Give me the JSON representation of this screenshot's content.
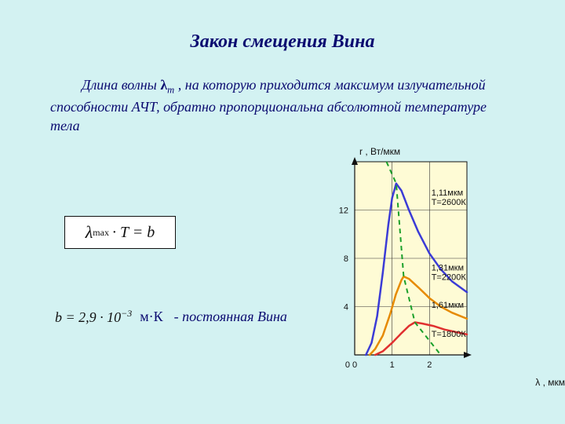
{
  "title": "Закон смещения Вина",
  "paragraph": {
    "pre": "Длина волны ",
    "lambda": "λ",
    "lambda_sub": "m",
    "post": " , на которую приходится максимум излучательной способности АЧТ, обратно пропорциональна абсолютной температуре тела"
  },
  "formula": {
    "lambda": "λ",
    "sub": "max",
    "rest": "· T = b"
  },
  "constant": {
    "expr_pre": "b = 2,9 · 10",
    "exp": "−3",
    "unit": "м·К",
    "desc": "- постоянная Вина"
  },
  "chart": {
    "y_label": "r ,  Вт/мкм",
    "x_label": "λ ,  мкм",
    "plot_bg": "#fefbd5",
    "page_bg": "#d3f2f2",
    "axis_color": "#111111",
    "grid_color": "#333333",
    "x_ticks": [
      0,
      1,
      2
    ],
    "y_ticks": [
      4,
      8,
      12
    ],
    "x_min": 0,
    "x_max": 3,
    "y_min": 0,
    "y_max": 16,
    "curves": [
      {
        "color": "#3b3bd6",
        "width": 2.5,
        "points": [
          [
            0.3,
            0.0
          ],
          [
            0.45,
            1.0
          ],
          [
            0.6,
            3.2
          ],
          [
            0.75,
            6.8
          ],
          [
            0.9,
            10.8
          ],
          [
            1.0,
            13.0
          ],
          [
            1.11,
            14.2
          ],
          [
            1.25,
            13.6
          ],
          [
            1.45,
            12.0
          ],
          [
            1.7,
            10.2
          ],
          [
            2.0,
            8.4
          ],
          [
            2.3,
            7.1
          ],
          [
            2.6,
            6.1
          ],
          [
            3.0,
            5.2
          ]
        ],
        "label_lines": [
          "1,11мкм",
          "T=2600К"
        ],
        "label_at": [
          2.05,
          13.2
        ]
      },
      {
        "color": "#e68a00",
        "width": 2.5,
        "points": [
          [
            0.4,
            0.0
          ],
          [
            0.55,
            0.5
          ],
          [
            0.75,
            1.6
          ],
          [
            0.95,
            3.4
          ],
          [
            1.1,
            5.0
          ],
          [
            1.25,
            6.2
          ],
          [
            1.31,
            6.5
          ],
          [
            1.45,
            6.3
          ],
          [
            1.7,
            5.6
          ],
          [
            2.0,
            4.7
          ],
          [
            2.3,
            4.0
          ],
          [
            2.6,
            3.5
          ],
          [
            3.0,
            3.0
          ]
        ],
        "label_lines": [
          "1,31мкм",
          "T=2200К"
        ],
        "label_at": [
          2.05,
          7.0
        ]
      },
      {
        "color": "#e03030",
        "width": 2.5,
        "points": [
          [
            0.55,
            0.0
          ],
          [
            0.75,
            0.3
          ],
          [
            1.0,
            1.0
          ],
          [
            1.25,
            1.8
          ],
          [
            1.45,
            2.4
          ],
          [
            1.61,
            2.7
          ],
          [
            1.8,
            2.6
          ],
          [
            2.1,
            2.4
          ],
          [
            2.4,
            2.1
          ],
          [
            2.7,
            1.9
          ],
          [
            3.0,
            1.7
          ]
        ],
        "label_lines": [
          "1,61мкм"
        ],
        "label_at": [
          2.05,
          3.9
        ]
      }
    ],
    "temp_label_1800": {
      "text": "T=1800К",
      "at": [
        2.05,
        1.5
      ]
    },
    "dashed": {
      "color": "#1aa02a",
      "width": 2,
      "points": [
        [
          0.85,
          16.0
        ],
        [
          1.11,
          14.2
        ],
        [
          1.31,
          6.5
        ],
        [
          1.61,
          2.7
        ],
        [
          2.3,
          0.0
        ]
      ]
    }
  }
}
